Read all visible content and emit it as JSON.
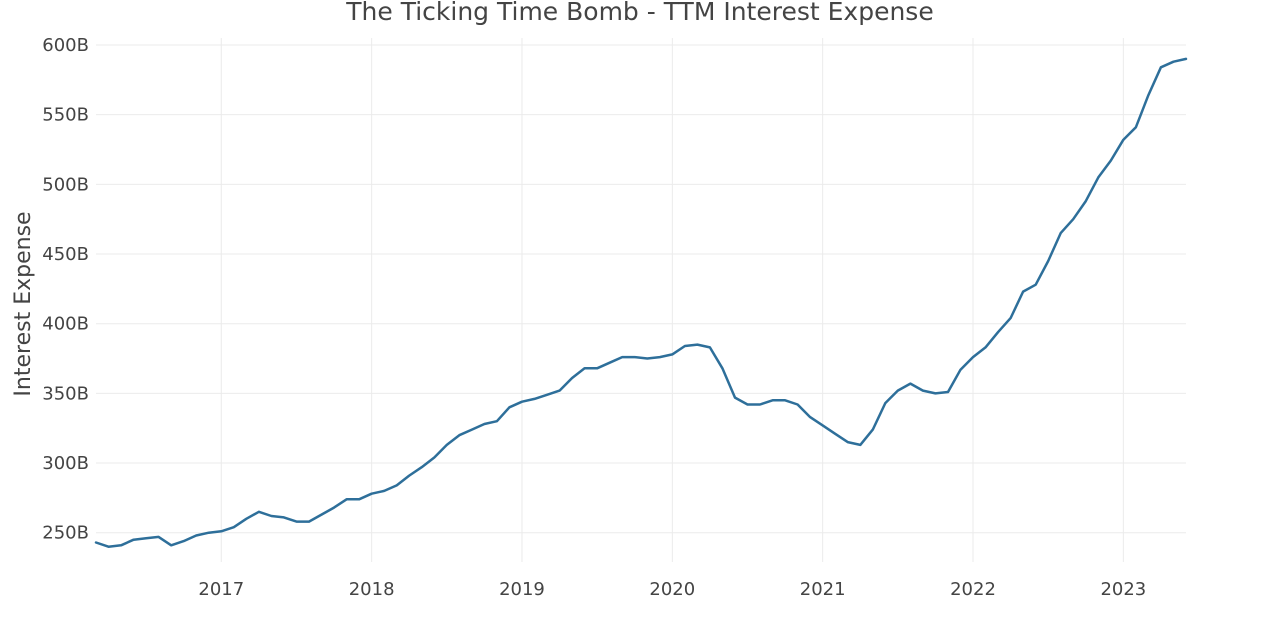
{
  "chart_data": {
    "type": "line",
    "title": "The Ticking Time Bomb - TTM Interest Expense",
    "xlabel": "",
    "ylabel": "Interest Expense",
    "y_unit_suffix": "B",
    "x_tick_labels": [
      "2017",
      "2018",
      "2019",
      "2020",
      "2021",
      "2022",
      "2023"
    ],
    "y_ticks": [
      250,
      300,
      350,
      400,
      450,
      500,
      550,
      600
    ],
    "y_tick_labels": [
      "250B",
      "300B",
      "350B",
      "400B",
      "450B",
      "500B",
      "550B",
      "600B"
    ],
    "xlim": [
      "2016-03",
      "2023-06"
    ],
    "ylim": [
      229,
      605
    ],
    "grid": true,
    "colors": {
      "line": "#2e6f9a",
      "grid": "#ebebeb",
      "text": "#444444"
    },
    "series": [
      {
        "x": [
          "2016-03",
          "2016-04",
          "2016-05",
          "2016-06",
          "2016-07",
          "2016-08",
          "2016-09",
          "2016-10",
          "2016-11",
          "2016-12",
          "2017-01",
          "2017-02",
          "2017-03",
          "2017-04",
          "2017-05",
          "2017-06",
          "2017-07",
          "2017-08",
          "2017-09",
          "2017-10",
          "2017-11",
          "2017-12",
          "2018-01",
          "2018-02",
          "2018-03",
          "2018-04",
          "2018-05",
          "2018-06",
          "2018-07",
          "2018-08",
          "2018-09",
          "2018-10",
          "2018-11",
          "2018-12",
          "2019-01",
          "2019-02",
          "2019-03",
          "2019-04",
          "2019-05",
          "2019-06",
          "2019-07",
          "2019-08",
          "2019-09",
          "2019-10",
          "2019-11",
          "2019-12",
          "2020-01",
          "2020-02",
          "2020-03",
          "2020-04",
          "2020-05",
          "2020-06",
          "2020-07",
          "2020-08",
          "2020-09",
          "2020-10",
          "2020-11",
          "2020-12",
          "2021-01",
          "2021-02",
          "2021-03",
          "2021-04",
          "2021-05",
          "2021-06",
          "2021-07",
          "2021-08",
          "2021-09",
          "2021-10",
          "2021-11",
          "2021-12",
          "2022-01",
          "2022-02",
          "2022-03",
          "2022-04",
          "2022-05",
          "2022-06",
          "2022-07",
          "2022-08",
          "2022-09",
          "2022-10",
          "2022-11",
          "2022-12",
          "2023-01",
          "2023-02",
          "2023-03",
          "2023-04",
          "2023-05",
          "2023-06"
        ],
        "values": [
          243,
          240,
          241,
          245,
          246,
          247,
          241,
          244,
          248,
          250,
          251,
          254,
          260,
          265,
          262,
          261,
          258,
          258,
          263,
          268,
          274,
          274,
          278,
          280,
          284,
          291,
          297,
          304,
          313,
          320,
          324,
          328,
          330,
          340,
          344,
          346,
          349,
          352,
          361,
          368,
          368,
          372,
          376,
          376,
          375,
          376,
          378,
          384,
          385,
          383,
          368,
          347,
          342,
          342,
          345,
          345,
          342,
          333,
          327,
          321,
          315,
          313,
          324,
          343,
          352,
          357,
          352,
          350,
          351,
          367,
          376,
          383,
          394,
          404,
          423,
          428,
          445,
          465,
          475,
          488,
          505,
          517,
          532,
          541,
          564,
          584,
          588,
          590
        ]
      }
    ]
  }
}
